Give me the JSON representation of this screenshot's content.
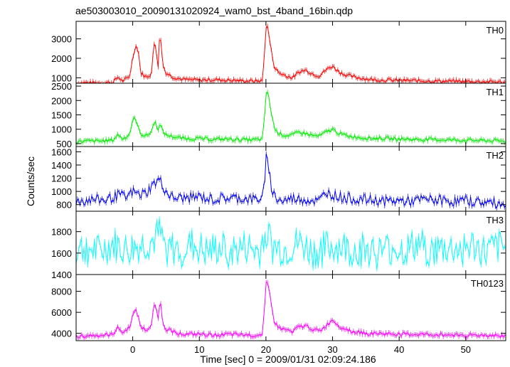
{
  "chart_data": {
    "type": "line",
    "title": "ae503003010_20090131020924_wam0_bst_4band_16bin.qdp",
    "xlabel": "Time [sec] 0 = 2009/01/31 02:09:24.186",
    "ylabel": "Counts/sec",
    "xlim": [
      -8.5,
      56
    ],
    "x_ticks": [
      0,
      10,
      20,
      30,
      40,
      50
    ],
    "panels": [
      {
        "name": "TH0",
        "color": "#ff0000",
        "ylim": [
          720,
          3900
        ],
        "yticks": [
          1000,
          2000,
          3000
        ],
        "series": {
          "name": "TH0",
          "x": [
            -8.5,
            -5,
            -3,
            -2.2,
            -1.5,
            -0.5,
            0,
            0.4,
            0.8,
            1.2,
            2,
            2.8,
            3.2,
            3.5,
            3.8,
            4.1,
            4.5,
            5,
            6,
            7,
            8,
            10,
            12,
            14,
            16,
            18,
            19.5,
            19.9,
            20.1,
            20.4,
            20.8,
            21.3,
            22,
            23,
            24,
            25,
            26,
            27,
            28,
            29,
            30,
            31,
            32,
            33,
            34,
            35,
            36,
            38,
            40,
            42,
            44,
            46,
            48,
            50,
            52,
            54,
            56
          ],
          "y": [
            740,
            740,
            760,
            1040,
            820,
            1050,
            2000,
            2650,
            2500,
            1250,
            1030,
            1200,
            2750,
            2600,
            1500,
            3450,
            1700,
            1250,
            1050,
            950,
            900,
            880,
            900,
            880,
            850,
            830,
            850,
            3000,
            3850,
            3300,
            2400,
            1500,
            1250,
            1100,
            1000,
            1300,
            1400,
            1200,
            1100,
            1400,
            1600,
            1300,
            1150,
            1050,
            1000,
            950,
            900,
            880,
            860,
            850,
            840,
            830,
            820,
            810,
            800,
            790,
            760
          ]
        }
      },
      {
        "name": "TH1",
        "color": "#00ee00",
        "ylim": [
          400,
          2600
        ],
        "yticks": [
          500,
          1000,
          1500,
          2000,
          2500
        ],
        "series": {
          "name": "TH1",
          "x": [
            -8.5,
            -5,
            -3,
            -2.2,
            -1.5,
            -0.5,
            0,
            0.4,
            0.8,
            1.2,
            2,
            2.8,
            3.2,
            3.5,
            3.8,
            4.1,
            4.5,
            5,
            6,
            7,
            8,
            10,
            12,
            14,
            16,
            18,
            19.5,
            19.9,
            20.1,
            20.4,
            20.8,
            21.3,
            22,
            23,
            24,
            25,
            26,
            27,
            28,
            29,
            30,
            31,
            32,
            33,
            34,
            35,
            36,
            38,
            40,
            42,
            44,
            46,
            48,
            50,
            52,
            54,
            56
          ],
          "y": [
            580,
            590,
            620,
            820,
            660,
            820,
            1300,
            1400,
            1050,
            850,
            760,
            900,
            1250,
            1200,
            1000,
            1150,
            950,
            800,
            750,
            700,
            680,
            670,
            650,
            660,
            640,
            630,
            650,
            1800,
            2450,
            2100,
            1600,
            1000,
            850,
            780,
            800,
            900,
            850,
            780,
            760,
            900,
            1000,
            850,
            780,
            750,
            720,
            700,
            690,
            680,
            660,
            650,
            640,
            640,
            630,
            620,
            610,
            600,
            580
          ]
        }
      },
      {
        "name": "TH2",
        "color": "#0000ff",
        "ylim": [
          700,
          1680
        ],
        "yticks": [
          800,
          1000,
          1200,
          1400,
          1600
        ],
        "series": {
          "name": "TH2",
          "x": [
            -8.5,
            -6,
            -4,
            -2,
            -1,
            0,
            1,
            2,
            3,
            4,
            5,
            6,
            8,
            10,
            12,
            14,
            16,
            18,
            19.5,
            19.9,
            20.1,
            20.4,
            20.8,
            21.5,
            22.5,
            24,
            26,
            28,
            29,
            30,
            32,
            34,
            36,
            38,
            40,
            42,
            44,
            46,
            48,
            50,
            52,
            54,
            56
          ],
          "y": [
            850,
            880,
            870,
            950,
            900,
            1000,
            950,
            980,
            1100,
            1180,
            1000,
            900,
            900,
            920,
            880,
            900,
            900,
            880,
            900,
            1200,
            1640,
            1400,
            1050,
            900,
            850,
            900,
            880,
            850,
            1000,
            950,
            900,
            880,
            870,
            850,
            860,
            850,
            880,
            870,
            850,
            860,
            840,
            830,
            800
          ]
        }
      },
      {
        "name": "TH3",
        "color": "#00ffff",
        "ylim": [
          1400,
          1990
        ],
        "yticks": [
          1400,
          1600,
          1800
        ],
        "series": {
          "name": "TH3",
          "x": [
            -8.5,
            -7,
            -5,
            -3,
            -1,
            1,
            3,
            4,
            5,
            7,
            9,
            11,
            13,
            15,
            17,
            19,
            20,
            21,
            23,
            25,
            27,
            29,
            31,
            33,
            35,
            37,
            39,
            41,
            43,
            45,
            47,
            49,
            51,
            53,
            55,
            56
          ],
          "y": [
            1620,
            1650,
            1600,
            1680,
            1620,
            1660,
            1700,
            1780,
            1640,
            1620,
            1670,
            1600,
            1640,
            1610,
            1650,
            1600,
            1820,
            1650,
            1620,
            1690,
            1600,
            1640,
            1660,
            1620,
            1640,
            1600,
            1650,
            1620,
            1680,
            1610,
            1640,
            1630,
            1660,
            1600,
            1650,
            1640
          ]
        }
      },
      {
        "name": "TH0123",
        "color": "#ff00ff",
        "ylim": [
          3300,
          9600
        ],
        "yticks": [
          4000,
          6000,
          8000
        ],
        "series": {
          "name": "TH0123",
          "x": [
            -8.5,
            -5,
            -3,
            -2.2,
            -1.5,
            -0.5,
            0,
            0.4,
            0.8,
            1.2,
            2,
            2.8,
            3.2,
            3.5,
            3.8,
            4.1,
            4.5,
            5,
            6,
            7,
            8,
            10,
            12,
            14,
            16,
            18,
            19.5,
            19.9,
            20.1,
            20.4,
            20.8,
            21.3,
            22,
            23,
            24,
            25,
            26,
            27,
            28,
            29,
            30,
            31,
            32,
            33,
            34,
            35,
            36,
            38,
            40,
            42,
            44,
            46,
            48,
            50,
            52,
            54,
            56
          ],
          "y": [
            3750,
            3800,
            3850,
            4700,
            4000,
            4600,
            5600,
            6500,
            5600,
            4600,
            4300,
            4600,
            6800,
            6700,
            5200,
            7300,
            5100,
            4400,
            4200,
            4000,
            3900,
            3900,
            3850,
            3880,
            3850,
            3820,
            3900,
            7700,
            9300,
            8600,
            6700,
            5000,
            4500,
            4300,
            4200,
            4600,
            4700,
            4400,
            4200,
            4700,
            5300,
            4700,
            4400,
            4200,
            4100,
            4000,
            3980,
            3950,
            3920,
            3900,
            3880,
            3860,
            3850,
            3830,
            3820,
            3800,
            3750
          ]
        }
      }
    ]
  }
}
